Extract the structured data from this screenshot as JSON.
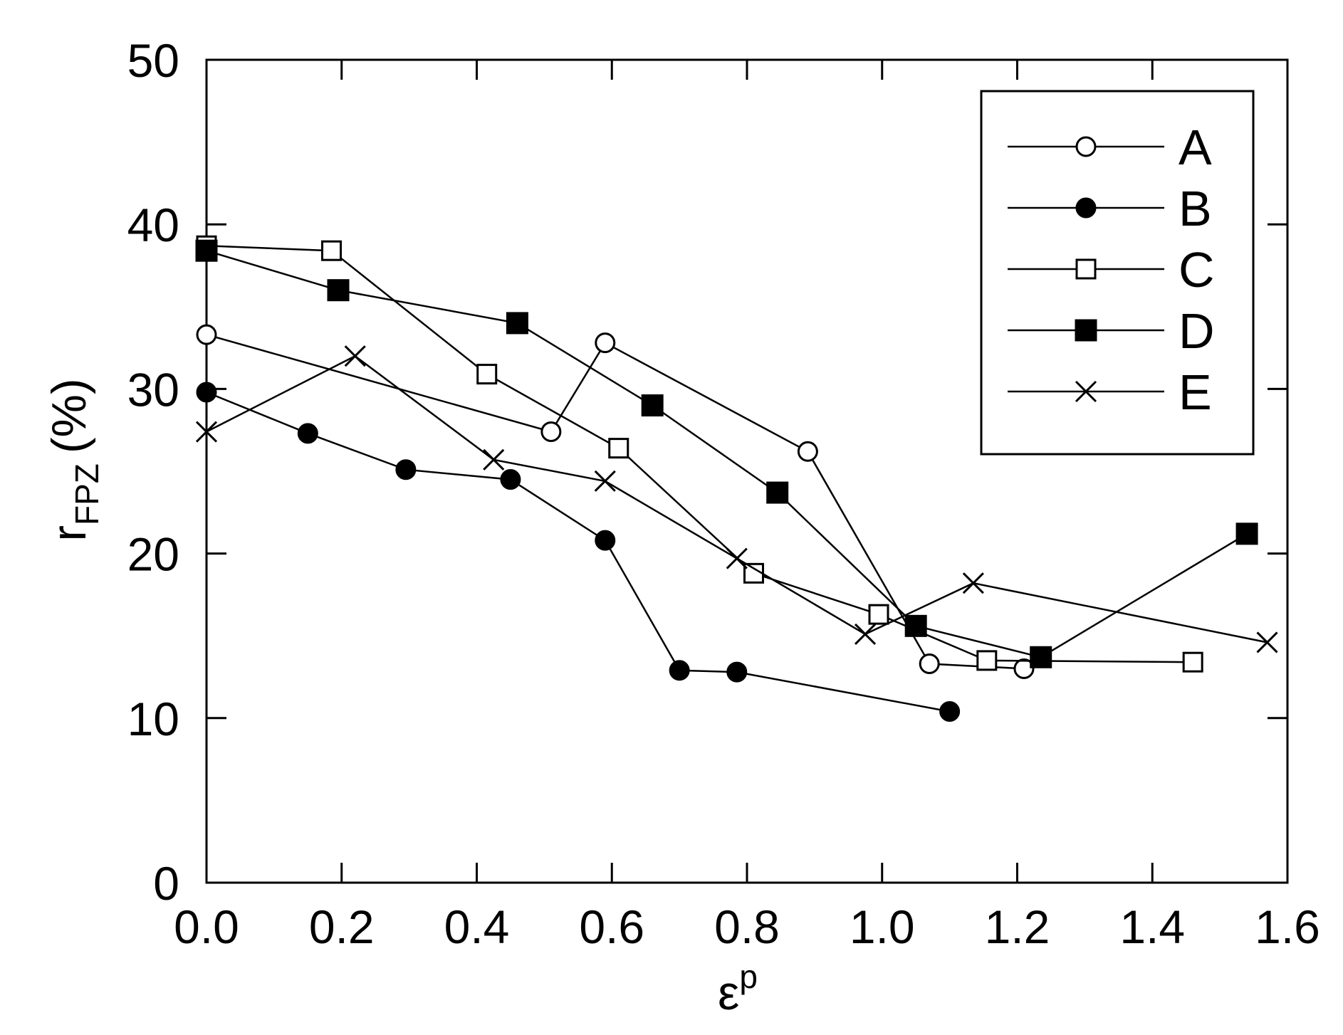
{
  "chart_data": {
    "type": "line",
    "xlabel": "ε",
    "xlabel_superscript": "p",
    "ylabel": "r",
    "ylabel_subscript": "FPZ",
    "ylabel_suffix": "(%)",
    "xlim": [
      0.0,
      1.6
    ],
    "ylim": [
      0,
      50
    ],
    "xticks": [
      "0.0",
      "0.2",
      "0.4",
      "0.6",
      "0.8",
      "1.0",
      "1.2",
      "1.4",
      "1.6"
    ],
    "yticks": [
      "0",
      "10",
      "20",
      "30",
      "40",
      "50"
    ],
    "grid": false,
    "legend_position": "top-right",
    "series": [
      {
        "name": "A",
        "marker": "open-circle",
        "x": [
          0.0,
          0.51,
          0.59,
          0.89,
          1.07,
          1.21
        ],
        "y": [
          33.3,
          27.4,
          32.8,
          26.2,
          13.3,
          13.0
        ]
      },
      {
        "name": "B",
        "marker": "filled-circle",
        "x": [
          0.0,
          0.15,
          0.295,
          0.45,
          0.59,
          0.7,
          0.785,
          1.1
        ],
        "y": [
          29.8,
          27.3,
          25.1,
          24.5,
          20.8,
          12.9,
          12.8,
          10.4
        ]
      },
      {
        "name": "C",
        "marker": "open-square",
        "x": [
          0.0,
          0.185,
          0.415,
          0.61,
          0.81,
          0.995,
          1.155,
          1.46
        ],
        "y": [
          38.7,
          38.4,
          30.9,
          26.4,
          18.8,
          16.3,
          13.5,
          13.4
        ]
      },
      {
        "name": "D",
        "marker": "filled-square",
        "x": [
          0.0,
          0.195,
          0.46,
          0.66,
          0.845,
          1.05,
          1.235,
          1.54
        ],
        "y": [
          38.4,
          36.0,
          34.0,
          29.0,
          23.7,
          15.6,
          13.7,
          21.2
        ]
      },
      {
        "name": "E",
        "marker": "cross",
        "x": [
          0.0,
          0.22,
          0.425,
          0.59,
          0.785,
          0.975,
          1.135,
          1.57
        ],
        "y": [
          27.4,
          32.0,
          25.7,
          24.4,
          19.7,
          15.1,
          18.2,
          14.6
        ]
      }
    ]
  }
}
